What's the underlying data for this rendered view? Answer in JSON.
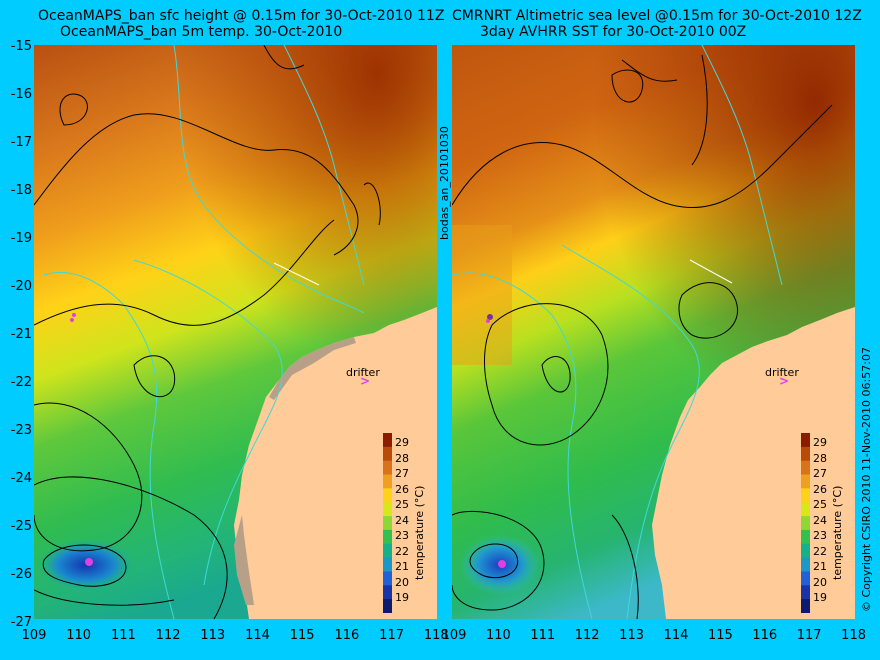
{
  "left_panel": {
    "title_line1": "OceanMAPS_ban sfc height @ 0.15m for 30-Oct-2010 11Z",
    "title_line2": "OceanMAPS_ban 5m temp. 30-Oct-2010",
    "drifter_label": "drifter",
    "drifter_mark": ">"
  },
  "right_panel": {
    "title_line1": "CMRNRT Altimetric sea level  @0.15m  for 30-Oct-2010 12Z",
    "title_line2": "3day AVHRR SST for 30-Oct-2010 00Z",
    "drifter_label": "drifter",
    "drifter_mark": ">"
  },
  "center_vertical_text": "bodas_an_20101030",
  "right_vertical_text": "© Copyright CSIRO 2010  11-Nov-2010 06:57:07",
  "colorbar": {
    "title": "temperature (°C)",
    "ticks": [
      "29",
      "28",
      "27",
      "26",
      "25",
      "24",
      "23",
      "22",
      "21",
      "20",
      "19"
    ],
    "colors": [
      "#8b1c00",
      "#b84a0a",
      "#d9731a",
      "#f0a020",
      "#ffd21a",
      "#d8e61a",
      "#8ed836",
      "#32c04e",
      "#16b08a",
      "#1a98c8",
      "#2060d8",
      "#1834a8",
      "#0c1a70"
    ]
  },
  "y_axis_labels": [
    "-15",
    "-16",
    "-17",
    "-18",
    "-19",
    "-20",
    "-21",
    "-22",
    "-23",
    "-24",
    "-25",
    "-26",
    "-27"
  ],
  "left_x_axis_labels": [
    "109",
    "110",
    "111",
    "112",
    "113",
    "114",
    "115",
    "116",
    "117",
    "118"
  ],
  "right_x_axis_labels": [
    "109",
    "110",
    "111",
    "112",
    "113",
    "114",
    "115",
    "116",
    "117",
    "118"
  ],
  "colors": {
    "background": "#00ccff",
    "land": "#ffcc99",
    "warm": "#c8580e",
    "cool": "#34b84c",
    "contour": "#000000",
    "bathymetry": "#40d8d8",
    "drifter": "#e040e0"
  }
}
